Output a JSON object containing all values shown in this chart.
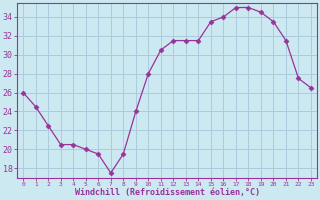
{
  "x": [
    0,
    1,
    2,
    3,
    4,
    5,
    6,
    7,
    8,
    9,
    10,
    11,
    12,
    13,
    14,
    15,
    16,
    17,
    18,
    19,
    20,
    21,
    22,
    23
  ],
  "y": [
    26,
    24.5,
    22.5,
    20.5,
    20.5,
    20,
    19.5,
    17.5,
    19.5,
    24,
    28,
    30.5,
    31.5,
    31.5,
    31.5,
    33.5,
    34,
    35,
    35,
    34.5,
    33.5,
    31.5,
    27.5,
    26.5
  ],
  "line_color": "#993399",
  "marker": "D",
  "marker_size": 2.5,
  "bg_color": "#cce8f0",
  "grid_color": "#aaccdd",
  "xlabel": "Windchill (Refroidissement éolien,°C)",
  "xlabel_color": "#993399",
  "tick_color": "#993399",
  "ylabel_ticks": [
    18,
    20,
    22,
    24,
    26,
    28,
    30,
    32,
    34
  ],
  "ylim": [
    17,
    35.5
  ],
  "xlim": [
    -0.5,
    23.5
  ],
  "xtick_labels": [
    "0",
    "1",
    "2",
    "3",
    "4",
    "5",
    "6",
    "7",
    "8",
    "9",
    "10",
    "11",
    "12",
    "13",
    "14",
    "15",
    "16",
    "17",
    "18",
    "19",
    "20",
    "21",
    "22",
    "23"
  ]
}
